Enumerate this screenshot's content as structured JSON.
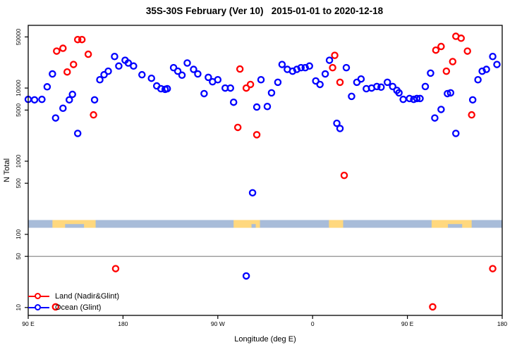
{
  "window": {
    "title": "35S-30S February (Ver 10)   2015-01-01 to 2020-12-18"
  },
  "legend": {
    "items": [
      {
        "label": "Land (Nadir&Glint)",
        "color": "#ff0000"
      },
      {
        "label": "Ocean (Glint)",
        "color": "#0000ff"
      }
    ]
  },
  "chart_data": {
    "type": "scatter",
    "title": "35S-30S February (Ver 10)   2015-01-01 to 2020-12-18",
    "xlabel": "Longitude (deg E)",
    "ylabel": "N Total",
    "grid": false,
    "legend_position": "bottom-left-inside",
    "marker": {
      "shape": "open-circle",
      "radius": 4.1,
      "stroke_width": 2.3
    },
    "x_axis": {
      "range": [
        90,
        540
      ],
      "ticks": [
        90,
        180,
        270,
        360,
        450,
        540
      ],
      "tick_labels": [
        "90 E",
        "180",
        "90 W",
        "0",
        "90 E",
        "180"
      ],
      "note": "longitude wraps eastward from 90E through 180, 90W, 0, 90E to 180"
    },
    "y_axis": {
      "scale": "log",
      "range": [
        7.8,
        72000
      ],
      "ticks": [
        10,
        50,
        100,
        500,
        1000,
        5000,
        10000,
        50000
      ],
      "tick_labels": [
        "10",
        "50",
        "100",
        "500",
        "1000",
        "5000",
        "10000",
        "50000"
      ],
      "tick_label_rotation": -90
    },
    "reference_line": {
      "y": 50,
      "color": "#808080"
    },
    "map_band": {
      "comment": "latitude-strip map 35S-30S drawn across plot",
      "n_range": [
        123,
        157
      ],
      "ocean_color": "#a8bcd9",
      "land_color": "#ffd87e",
      "land_patches": [
        {
          "name": "australia-1",
          "lon": [
            113,
            154
          ],
          "notches": [
            [
              125,
              143
            ]
          ]
        },
        {
          "name": "south-america",
          "lon": [
            285,
            310
          ],
          "notches": [
            [
              302,
              306
            ]
          ]
        },
        {
          "name": "south-africa",
          "lon": [
            375.5,
            389
          ],
          "notches": []
        },
        {
          "name": "australia-2",
          "lon": [
            473,
            511
          ],
          "notches": [
            [
              488.5,
              502
            ]
          ]
        }
      ]
    },
    "series": [
      {
        "name": "Land (Nadir&Glint)",
        "color": "#ff0000",
        "points": [
          [
            137,
            46000
          ],
          [
            141,
            46000
          ],
          [
            117,
            32000
          ],
          [
            123,
            35000
          ],
          [
            147,
            29000
          ],
          [
            133,
            21000
          ],
          [
            127,
            16600
          ],
          [
            152,
            4300
          ],
          [
            173,
            34
          ],
          [
            116,
            10.2
          ],
          [
            289,
            2900
          ],
          [
            307,
            2300
          ],
          [
            291,
            18200
          ],
          [
            297,
            10000
          ],
          [
            301,
            11200
          ],
          [
            381,
            28000
          ],
          [
            379,
            19000
          ],
          [
            386,
            12000
          ],
          [
            390,
            640
          ],
          [
            496,
            51000
          ],
          [
            501,
            48000
          ],
          [
            477,
            33000
          ],
          [
            482,
            37000
          ],
          [
            507,
            32000
          ],
          [
            493,
            23000
          ],
          [
            487,
            17000
          ],
          [
            511,
            4300
          ],
          [
            531,
            34
          ],
          [
            474,
            10.2
          ]
        ]
      },
      {
        "name": "Ocean (Glint)",
        "color": "#0000ff",
        "points": [
          [
            113,
            15600
          ],
          [
            108,
            10400
          ],
          [
            90,
            7000
          ],
          [
            96,
            6900
          ],
          [
            103,
            7000
          ],
          [
            132,
            8200
          ],
          [
            129,
            6900
          ],
          [
            123,
            5300
          ],
          [
            116,
            3900
          ],
          [
            137,
            2400
          ],
          [
            153,
            6900
          ],
          [
            158,
            13000
          ],
          [
            162,
            15200
          ],
          [
            166,
            17000
          ],
          [
            172,
            27000
          ],
          [
            176,
            20000
          ],
          [
            182,
            24000
          ],
          [
            185,
            22000
          ],
          [
            190,
            20000
          ],
          [
            198,
            15200
          ],
          [
            207,
            13600
          ],
          [
            212,
            10700
          ],
          [
            216,
            9800
          ],
          [
            220,
            9600
          ],
          [
            222,
            9800
          ],
          [
            228,
            19000
          ],
          [
            232,
            17000
          ],
          [
            236,
            15000
          ],
          [
            241,
            22000
          ],
          [
            247,
            18000
          ],
          [
            251,
            15600
          ],
          [
            257,
            8400
          ],
          [
            261,
            14000
          ],
          [
            265,
            12200
          ],
          [
            270,
            13000
          ],
          [
            277,
            10000
          ],
          [
            282,
            10000
          ],
          [
            285,
            6400
          ],
          [
            303,
            370
          ],
          [
            307,
            5500
          ],
          [
            311,
            13000
          ],
          [
            317,
            5600
          ],
          [
            321,
            8600
          ],
          [
            327,
            12000
          ],
          [
            331,
            21000
          ],
          [
            336,
            18000
          ],
          [
            341,
            17000
          ],
          [
            345,
            18000
          ],
          [
            349,
            19000
          ],
          [
            353,
            19000
          ],
          [
            357,
            20000
          ],
          [
            363,
            12500
          ],
          [
            367,
            11200
          ],
          [
            372,
            15600
          ],
          [
            376,
            24000
          ],
          [
            392,
            19000
          ],
          [
            397,
            7700
          ],
          [
            402,
            12000
          ],
          [
            406,
            13300
          ],
          [
            411,
            9800
          ],
          [
            416,
            10000
          ],
          [
            421,
            10500
          ],
          [
            425,
            10300
          ],
          [
            431,
            12000
          ],
          [
            436,
            10500
          ],
          [
            440,
            9300
          ],
          [
            442,
            8600
          ],
          [
            446,
            7000
          ],
          [
            452,
            7200
          ],
          [
            456,
            7000
          ],
          [
            459,
            7200
          ],
          [
            462,
            7200
          ],
          [
            467,
            10500
          ],
          [
            472,
            16000
          ],
          [
            476,
            3900
          ],
          [
            482,
            5100
          ],
          [
            488,
            8400
          ],
          [
            491,
            8600
          ],
          [
            496,
            2400
          ],
          [
            512,
            6900
          ],
          [
            517,
            13000
          ],
          [
            521,
            17000
          ],
          [
            525,
            18000
          ],
          [
            531,
            27000
          ],
          [
            535,
            21000
          ],
          [
            383,
            3300
          ],
          [
            386,
            2800
          ],
          [
            297,
            27
          ]
        ]
      }
    ]
  }
}
